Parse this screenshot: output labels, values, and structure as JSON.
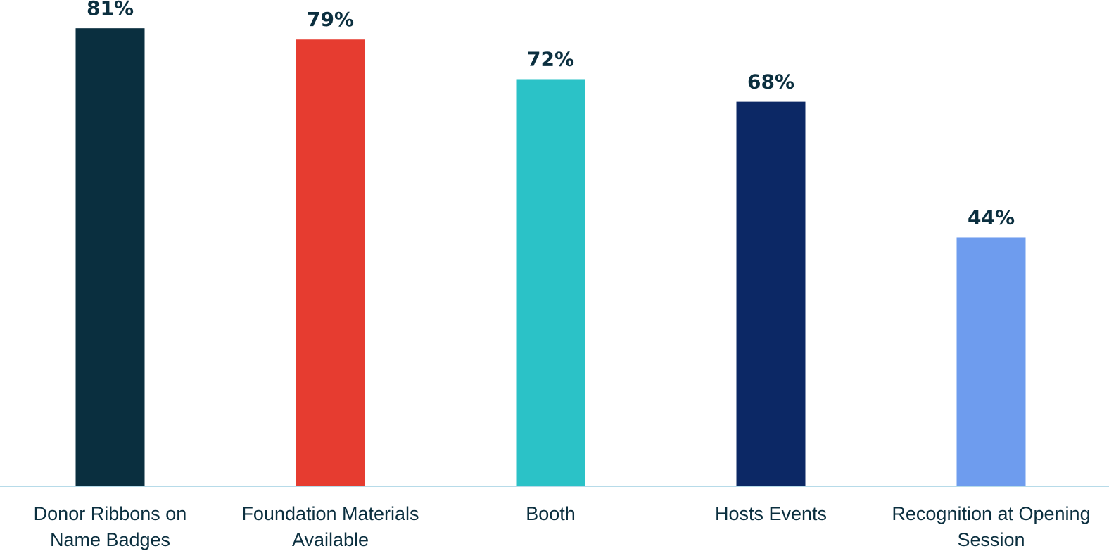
{
  "chart_data": {
    "type": "bar",
    "categories": [
      [
        "Donor Ribbons on",
        "Name Badges"
      ],
      [
        "Foundation Materials",
        "Available"
      ],
      [
        "Booth"
      ],
      [
        "Hosts Events"
      ],
      [
        "Recognition at Opening",
        "Session"
      ]
    ],
    "values": [
      81,
      79,
      72,
      68,
      44
    ],
    "value_labels": [
      "81%",
      "79%",
      "72%",
      "68%",
      "44%"
    ],
    "bar_colors": [
      "#0a2f3f",
      "#e63c30",
      "#2bc2c7",
      "#0c2865",
      "#6e9cee"
    ],
    "ylim": [
      0,
      86
    ],
    "grid": false,
    "legend": "none",
    "axis_color": "#b7dbe9",
    "text_color": "#0b2f3f"
  }
}
